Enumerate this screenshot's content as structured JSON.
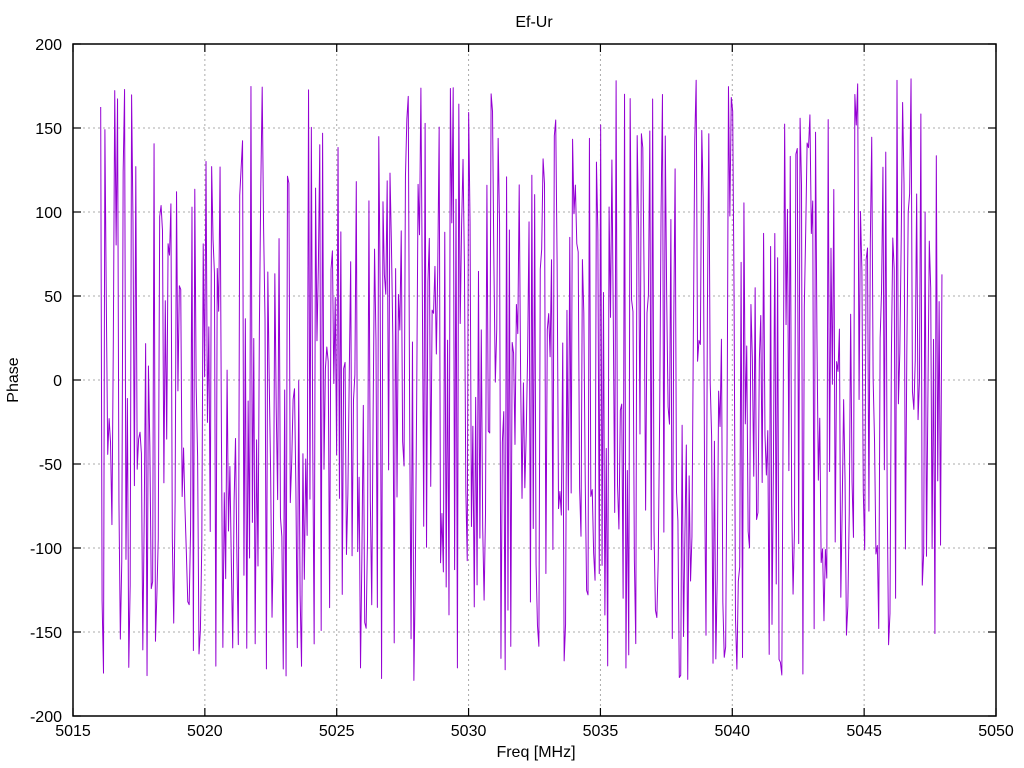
{
  "chart_data": {
    "type": "line",
    "title": "Ef-Ur",
    "xlabel": "Freq [MHz]",
    "ylabel": "Phase",
    "xlim": [
      5015,
      5050
    ],
    "ylim": [
      -200,
      200
    ],
    "x_ticks": [
      5015,
      5020,
      5025,
      5030,
      5035,
      5040,
      5045,
      5050
    ],
    "y_ticks": [
      -200,
      -150,
      -100,
      -50,
      0,
      50,
      100,
      150,
      200
    ],
    "grid": "dotted at every major tick",
    "legend": "none",
    "colors": {
      "line": "#9400D3",
      "grid": "#ababab",
      "frame": "#000000",
      "text": "#000000",
      "background": "#ffffff"
    },
    "series": [
      {
        "name": "Ef-Ur",
        "style": "lines",
        "color": "#9400D3",
        "x_start": 5016.05,
        "x_end": 5047.95,
        "n_points": 600,
        "y_min": -180,
        "y_max": 180,
        "description": "wrapped phase vs frequency; dense uniformly-distributed phase noise spanning -180 to +180 degrees across the whole band",
        "seed": 987654321
      }
    ]
  }
}
